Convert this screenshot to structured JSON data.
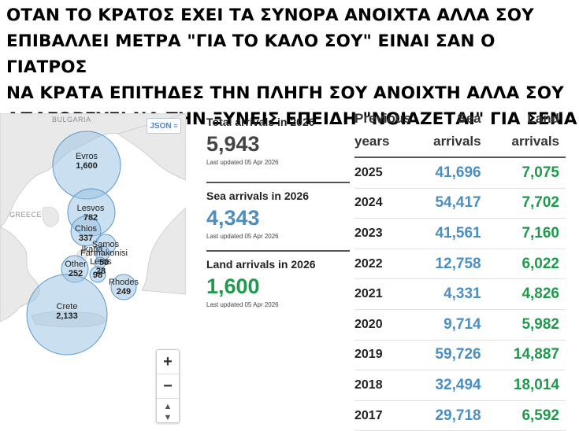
{
  "caption": "ΟΤΑΝ ΤΟ ΚΡΑΤΟΣ ΕΧΕΙ ΤΑ ΣΥΝΟΡΑ ΑΝΟΙΧΤΑ ΑΛΛΑ ΣΟΥ\nΕΠΙΒΑΛΛΕΙ ΜΕΤΡΑ \"ΓΙΑ ΤΟ ΚΑΛΟ ΣΟΥ\" ΕΙΝΑΙ ΣΑΝ Ο ΓΙΑΤΡΟΣ\nΝΑ ΚΡΑΤΑ ΕΠΙΤΗΔΕΣ ΤΗΝ ΠΛΗΓΗ ΣΟΥ ΑΝΟΙΧΤΗ ΑΛΛΑ ΣΟΥ\nΑΠΑΓΟΡΕΥΕΙ ΝΑ ΤΗΝ ΞΥΝΕΙΣ ΕΠΕΙΔΗ \"ΝΟΙΑΖΕΤΑΙ\" ΓΙΑ ΣΕΝΑ",
  "colors": {
    "sea": "#4a8ec4",
    "land": "#1f9a4c",
    "bubble_fill": "#9ec4e4",
    "bubble_stroke": "#5b97c9"
  },
  "map": {
    "json_label": "JSON",
    "json_icon": "rss-icon",
    "country_labels": {
      "bulgaria": "BULGARIA",
      "greece": "GREECE"
    },
    "zoom_in": "+",
    "zoom_out": "−",
    "reset": "▲\n▼",
    "bubbles": {
      "evros": {
        "name": "Evros",
        "value": "1,600"
      },
      "lesvos": {
        "name": "Lesvos",
        "value": "782"
      },
      "chios": {
        "name": "Chios",
        "value": "337"
      },
      "samos": {
        "name": "Samos",
        "value": ""
      },
      "ikaria": {
        "name": "Ikaria",
        "value": ""
      },
      "farmakonisi": {
        "name": "Farmakonisi",
        "value": "50"
      },
      "leros": {
        "name": "Leros",
        "value": "28"
      },
      "kos": {
        "name": "",
        "value": "98"
      },
      "other": {
        "name": "Other",
        "value": "252"
      },
      "rhodes": {
        "name": "Rhodes",
        "value": "249"
      },
      "crete": {
        "name": "Crete",
        "value": "2,133"
      }
    }
  },
  "stats": {
    "total": {
      "title": "Total arrivals in 2026",
      "value": "5,943",
      "updated": "Last updated 05 Apr 2026"
    },
    "sea": {
      "title": "Sea arrivals in 2026",
      "value": "4,343",
      "updated": "Last updated 05 Apr 2026"
    },
    "land": {
      "title": "Land arrivals in 2026",
      "value": "1,600",
      "updated": "Last updated 05 Apr 2026"
    }
  },
  "table": {
    "headers": {
      "year": "Previous\nyears",
      "sea": "Sea\narrivals",
      "land": "Land\narrivals"
    },
    "rows": [
      {
        "year": "2025",
        "sea": "41,696",
        "land": "7,075"
      },
      {
        "year": "2024",
        "sea": "54,417",
        "land": "7,702"
      },
      {
        "year": "2023",
        "sea": "41,561",
        "land": "7,160"
      },
      {
        "year": "2022",
        "sea": "12,758",
        "land": "6,022"
      },
      {
        "year": "2021",
        "sea": "4,331",
        "land": "4,826"
      },
      {
        "year": "2020",
        "sea": "9,714",
        "land": "5,982"
      },
      {
        "year": "2019",
        "sea": "59,726",
        "land": "14,887"
      },
      {
        "year": "2018",
        "sea": "32,494",
        "land": "18,014"
      },
      {
        "year": "2017",
        "sea": "29,718",
        "land": "6,592"
      }
    ]
  }
}
